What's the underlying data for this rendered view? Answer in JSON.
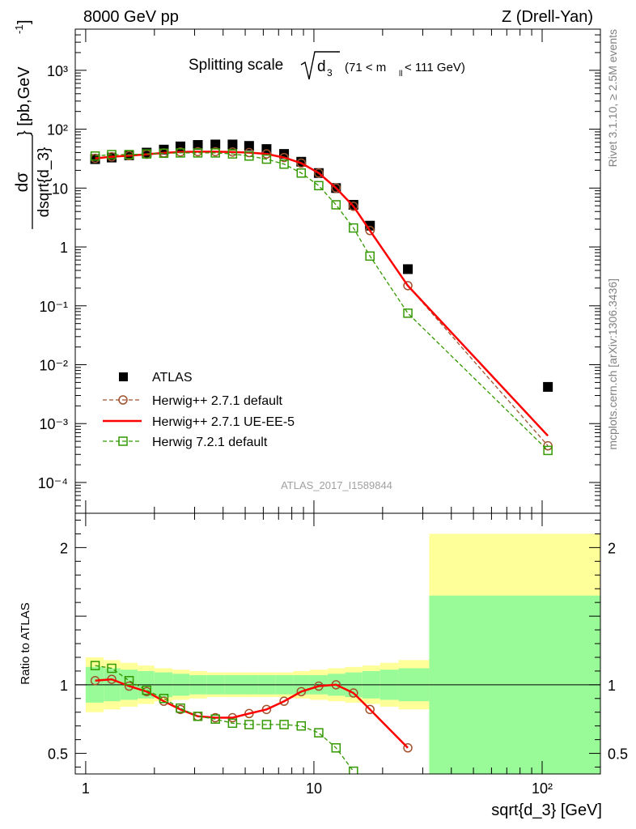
{
  "header": {
    "energy": "8000 GeV pp",
    "process": "Z (Drell-Yan)"
  },
  "side_labels": {
    "rivet": "Rivet 3.1.10, ≥ 2.5M events",
    "mcplots": "mcplots.cern.ch [arXiv:1306.3436]"
  },
  "chart_data": [
    {
      "type": "scatter",
      "panel": "main",
      "title": "Splitting scale √d₃",
      "title_parts": {
        "lead": "Splitting scale",
        "sym": "d",
        "sub": "3",
        "range": "(71 < m",
        "range_sub": "ll",
        "range_end": " < 111 GeV)"
      },
      "ylabel": "dσ/dsqrt{d_3} [pb,GeV⁻¹]",
      "ylabel_parts": {
        "num": "dσ",
        "den": "dsqrt{d_3}",
        "unit": "} [pb,GeV",
        "unit_sup": "-1",
        "unit_end": "]"
      },
      "xlabel": "sqrt{d_3} [GeV]",
      "xscale": "log",
      "yscale": "log",
      "xlim": [
        0.9,
        180
      ],
      "ylim": [
        3e-05,
        5000
      ],
      "analysis_tag": "ATLAS_2017_I1589844",
      "x_ticks": [
        "1",
        "10",
        "10²"
      ],
      "y_ticks": [
        "10³",
        "10²",
        "10",
        "1",
        "10⁻¹",
        "10⁻²",
        "10⁻³",
        "10⁻⁴"
      ],
      "legend_position": "bottom-left",
      "series": [
        {
          "name": "ATLAS",
          "style": "data",
          "color": "#000000",
          "x": [
            1.1,
            1.3,
            1.55,
            1.85,
            2.2,
            2.6,
            3.1,
            3.7,
            4.4,
            5.2,
            6.2,
            7.4,
            8.8,
            10.5,
            12.5,
            14.9,
            17.6,
            25.8,
            106
          ],
          "y": [
            31,
            33,
            36,
            40,
            45,
            51,
            54,
            55,
            55,
            52,
            46,
            38,
            28,
            18,
            10,
            5.2,
            2.3,
            0.42,
            0.0042
          ]
        },
        {
          "name": "Herwig++ 2.7.1 default",
          "style": "circle-dashed",
          "color": "#a0522d",
          "x": [
            1.1,
            1.3,
            1.55,
            1.85,
            2.2,
            2.6,
            3.1,
            3.7,
            4.4,
            5.2,
            6.2,
            7.4,
            8.8,
            10.5,
            12.5,
            14.9,
            17.6,
            25.8,
            106
          ],
          "y": [
            32,
            34,
            35.5,
            37.5,
            39.5,
            41,
            41.5,
            41.5,
            41,
            40,
            38,
            33,
            26.5,
            18,
            10,
            4.9,
            1.9,
            0.22,
            0.00042
          ]
        },
        {
          "name": "Herwig++ 2.7.1 UE-EE-5",
          "style": "solid",
          "color": "#ff0000",
          "x": [
            1.1,
            1.3,
            1.55,
            1.85,
            2.2,
            2.6,
            3.1,
            3.7,
            4.4,
            5.2,
            6.2,
            7.4,
            8.8,
            10.5,
            12.5,
            14.9,
            17.6,
            25.8,
            106
          ],
          "y": [
            32,
            34,
            35.5,
            37.5,
            39.5,
            41,
            41.5,
            41.5,
            41,
            40,
            38,
            33,
            26.5,
            18,
            10,
            4.9,
            1.9,
            0.22,
            0.00062
          ]
        },
        {
          "name": "Herwig 7.2.1 default",
          "style": "square-dashed",
          "color": "#339900",
          "x": [
            1.1,
            1.3,
            1.55,
            1.85,
            2.2,
            2.6,
            3.1,
            3.7,
            4.4,
            5.2,
            6.2,
            7.4,
            8.8,
            10.5,
            12.5,
            14.9,
            17.6,
            25.8,
            106
          ],
          "y": [
            35,
            37,
            37,
            38,
            39,
            39.5,
            39.5,
            39.5,
            38,
            35,
            31,
            25.5,
            18,
            11,
            5.2,
            2.1,
            0.7,
            0.075,
            0.00035
          ]
        }
      ]
    },
    {
      "type": "line",
      "panel": "ratio",
      "ylabel": "Ratio to ATLAS",
      "xscale": "log",
      "xlim": [
        0.9,
        180
      ],
      "ylim": [
        0.35,
        2.25
      ],
      "y_ticks": [
        0.5,
        1,
        2
      ],
      "band_edges": [
        1.0,
        1.2,
        1.42,
        1.69,
        2.0,
        2.4,
        2.85,
        3.4,
        4.05,
        4.8,
        5.7,
        6.8,
        8.1,
        9.6,
        11.5,
        13.7,
        16.3,
        19.5,
        23.5,
        32,
        180
      ],
      "band_inner": [
        0.13,
        0.12,
        0.11,
        0.1,
        0.09,
        0.08,
        0.07,
        0.07,
        0.07,
        0.07,
        0.07,
        0.07,
        0.07,
        0.07,
        0.08,
        0.09,
        0.1,
        0.11,
        0.12,
        0.65
      ],
      "band_outer": [
        0.2,
        0.18,
        0.16,
        0.14,
        0.12,
        0.11,
        0.1,
        0.09,
        0.09,
        0.09,
        0.09,
        0.09,
        0.1,
        0.11,
        0.12,
        0.13,
        0.14,
        0.16,
        0.18,
        1.1
      ],
      "band_colors": {
        "inner": "#98fb98",
        "outer": "#ffff99"
      },
      "series": [
        {
          "name": "Herwig++ 2.7.1 default",
          "style": "circle-dashed",
          "color": "#a0522d",
          "x": [
            1.1,
            1.3,
            1.55,
            1.85,
            2.2,
            2.6,
            3.1,
            3.7,
            4.4,
            5.2,
            6.2,
            7.4,
            8.8,
            10.5,
            12.5,
            14.9,
            17.6,
            25.8
          ],
          "y": [
            1.03,
            1.04,
            0.99,
            0.95,
            0.88,
            0.82,
            0.77,
            0.76,
            0.76,
            0.79,
            0.82,
            0.88,
            0.95,
            0.99,
            1.0,
            0.94,
            0.82,
            0.54
          ]
        },
        {
          "name": "Herwig++ 2.7.1 UE-EE-5",
          "style": "solid",
          "color": "#ff0000",
          "x": [
            1.1,
            1.3,
            1.55,
            1.85,
            2.2,
            2.6,
            3.1,
            3.7,
            4.4,
            5.2,
            6.2,
            7.4,
            8.8,
            10.5,
            12.5,
            14.9,
            17.6,
            25.8
          ],
          "y": [
            1.03,
            1.04,
            0.99,
            0.95,
            0.88,
            0.82,
            0.77,
            0.76,
            0.76,
            0.79,
            0.82,
            0.88,
            0.95,
            0.99,
            1.0,
            0.94,
            0.82,
            0.54
          ]
        },
        {
          "name": "Herwig 7.2.1 default",
          "style": "square-dashed",
          "color": "#339900",
          "x": [
            1.1,
            1.3,
            1.55,
            1.85,
            2.2,
            2.6,
            3.1,
            3.7,
            4.4,
            5.2,
            6.2,
            7.4,
            8.8,
            10.5,
            12.5,
            14.9
          ],
          "y": [
            1.14,
            1.12,
            1.03,
            0.96,
            0.9,
            0.83,
            0.77,
            0.75,
            0.72,
            0.71,
            0.71,
            0.71,
            0.7,
            0.65,
            0.54,
            0.37
          ]
        }
      ]
    }
  ]
}
